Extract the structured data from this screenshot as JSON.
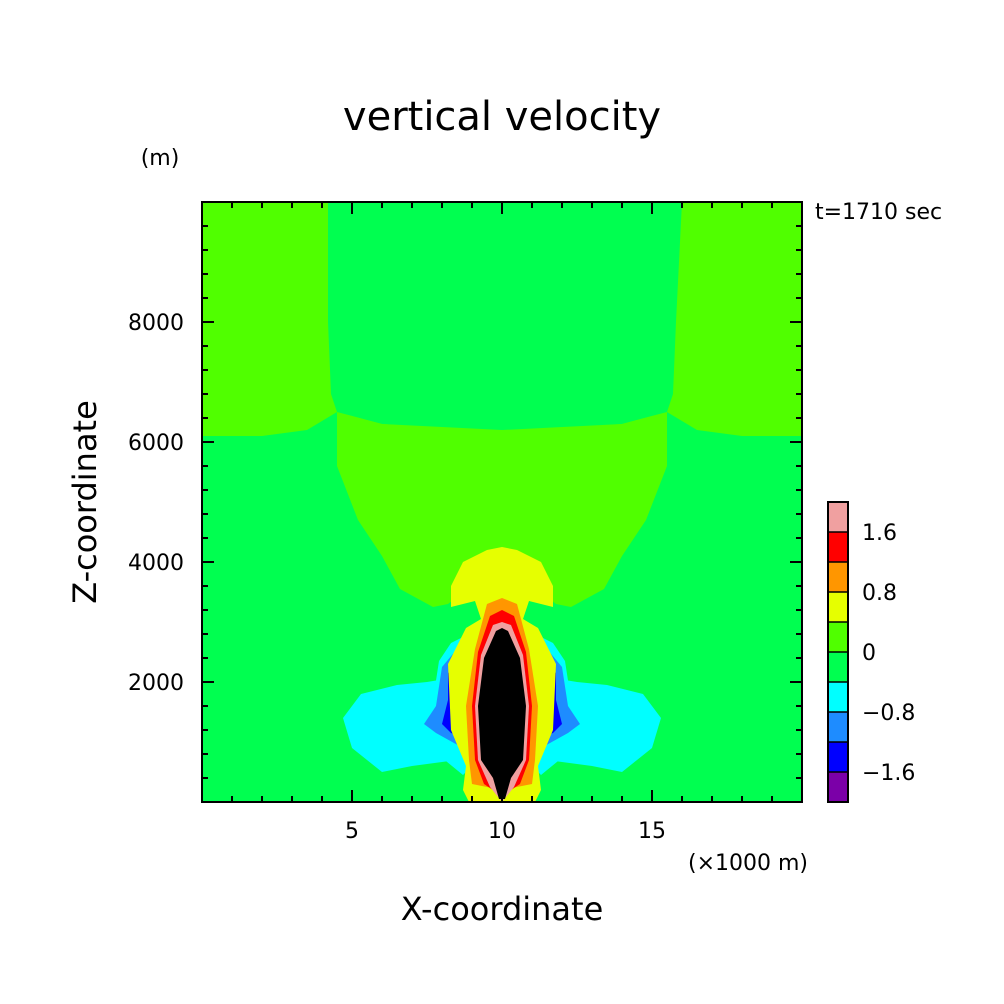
{
  "chart_data": {
    "type": "heatmap",
    "title": "vertical velocity",
    "xlabel": "X-coordinate",
    "ylabel": "Z-coordinate",
    "x_unit": "(×1000 m)",
    "y_unit": "(m)",
    "time_label": "t=1710 sec",
    "xlim": [
      0,
      20
    ],
    "ylim": [
      0,
      10000
    ],
    "x_ticks": [
      5,
      10,
      15
    ],
    "x_tick_labels": [
      "5",
      "10",
      "15"
    ],
    "y_ticks": [
      2000,
      4000,
      6000,
      8000
    ],
    "y_tick_labels": [
      "2000",
      "4000",
      "6000",
      "8000"
    ],
    "colorbar": {
      "levels": [
        -2.0,
        -1.6,
        -1.2,
        -0.8,
        -0.4,
        0,
        0.4,
        0.8,
        1.2,
        1.6,
        2.0
      ],
      "labels": [
        "1.6",
        "0.8",
        "0",
        "−0.8",
        "−1.6"
      ],
      "label_values": [
        1.6,
        0.8,
        0,
        -0.8,
        -1.6
      ],
      "colors_bottom_to_top": [
        "#7b00a8",
        "#0000ff",
        "#1e8cff",
        "#00ffff",
        "#00ff50",
        "#50ff00",
        "#e6ff00",
        "#ff9600",
        "#ff0000",
        "#f0a0a0"
      ]
    },
    "grid": false,
    "regions_level_index": [
      {
        "level": 5,
        "polygon": [
          [
            0,
            6100
          ],
          [
            2,
            6100
          ],
          [
            3.5,
            6200
          ],
          [
            4.5,
            6500
          ],
          [
            7,
            6150
          ],
          [
            10,
            5900
          ],
          [
            13,
            6150
          ],
          [
            15.5,
            6500
          ],
          [
            16.5,
            6200
          ],
          [
            18,
            6100
          ],
          [
            20,
            6100
          ],
          [
            20,
            10000
          ],
          [
            16,
            10000
          ],
          [
            15.8,
            8000
          ],
          [
            15.7,
            6800
          ],
          [
            15.5,
            6500
          ],
          [
            14,
            6300
          ],
          [
            10,
            6200
          ],
          [
            6,
            6300
          ],
          [
            4.5,
            6500
          ],
          [
            4.3,
            6800
          ],
          [
            4.2,
            8000
          ],
          [
            4.2,
            10000
          ],
          [
            0,
            10000
          ]
        ]
      },
      {
        "level": 5,
        "polygon": [
          [
            4.5,
            6500
          ],
          [
            6,
            6300
          ],
          [
            10,
            6150
          ],
          [
            14,
            6300
          ],
          [
            15.5,
            6500
          ],
          [
            15.5,
            5600
          ],
          [
            14.8,
            4700
          ],
          [
            14,
            4100
          ],
          [
            13.4,
            3550
          ],
          [
            12.3,
            3250
          ],
          [
            11.8,
            3300
          ],
          [
            11.3,
            3500
          ],
          [
            10,
            3450
          ],
          [
            8.7,
            3500
          ],
          [
            8.2,
            3300
          ],
          [
            7.7,
            3250
          ],
          [
            6.6,
            3550
          ],
          [
            6,
            4100
          ],
          [
            5.2,
            4700
          ],
          [
            4.5,
            5600
          ]
        ]
      },
      {
        "level": 3,
        "polygon": [
          [
            5.3,
            1800
          ],
          [
            6.5,
            1950
          ],
          [
            7.5,
            2000
          ],
          [
            8.7,
            2100
          ],
          [
            11.3,
            2100
          ],
          [
            12.5,
            2000
          ],
          [
            13.5,
            1950
          ],
          [
            14.7,
            1800
          ],
          [
            15.3,
            1400
          ],
          [
            15,
            900
          ],
          [
            14,
            500
          ],
          [
            13,
            600
          ],
          [
            11.5,
            700
          ],
          [
            10,
            700
          ],
          [
            8.5,
            700
          ],
          [
            7,
            600
          ],
          [
            6,
            500
          ],
          [
            5,
            900
          ],
          [
            4.7,
            1400
          ]
        ]
      },
      {
        "level": 3,
        "polygon": [
          [
            7.9,
            2350
          ],
          [
            8.3,
            2650
          ],
          [
            8.9,
            2800
          ],
          [
            9.1,
            2400
          ],
          [
            9.2,
            1500
          ],
          [
            9,
            600
          ],
          [
            8.7,
            450
          ],
          [
            7.6,
            900
          ],
          [
            7.3,
            1300
          ],
          [
            7.7,
            1700
          ]
        ]
      },
      {
        "level": 3,
        "polygon": [
          [
            12.1,
            2350
          ],
          [
            11.7,
            2650
          ],
          [
            11.1,
            2800
          ],
          [
            10.9,
            2400
          ],
          [
            10.8,
            1500
          ],
          [
            11,
            600
          ],
          [
            11.3,
            450
          ],
          [
            12.4,
            900
          ],
          [
            12.7,
            1300
          ],
          [
            12.3,
            1700
          ]
        ]
      },
      {
        "level": 2,
        "polygon": [
          [
            8.0,
            2250
          ],
          [
            8.5,
            2550
          ],
          [
            8.9,
            2600
          ],
          [
            9.0,
            2000
          ],
          [
            9.0,
            1100
          ],
          [
            8.7,
            900
          ],
          [
            7.8,
            1150
          ],
          [
            7.4,
            1300
          ],
          [
            7.8,
            1600
          ]
        ]
      },
      {
        "level": 2,
        "polygon": [
          [
            12.0,
            2250
          ],
          [
            11.5,
            2550
          ],
          [
            11.1,
            2600
          ],
          [
            11.0,
            2000
          ],
          [
            11.0,
            1100
          ],
          [
            11.3,
            900
          ],
          [
            12.2,
            1150
          ],
          [
            12.6,
            1300
          ],
          [
            12.2,
            1600
          ]
        ]
      },
      {
        "level": 1,
        "polygon": [
          [
            8.2,
            2150
          ],
          [
            8.6,
            2400
          ],
          [
            8.9,
            2450
          ],
          [
            8.9,
            1500
          ],
          [
            8.8,
            1050
          ],
          [
            8.3,
            1150
          ],
          [
            8.0,
            1300
          ],
          [
            8.2,
            1700
          ]
        ]
      },
      {
        "level": 1,
        "polygon": [
          [
            11.8,
            2150
          ],
          [
            11.4,
            2400
          ],
          [
            11.1,
            2450
          ],
          [
            11.1,
            1500
          ],
          [
            11.2,
            1050
          ],
          [
            11.7,
            1150
          ],
          [
            12.0,
            1300
          ],
          [
            11.8,
            1700
          ]
        ]
      },
      {
        "level": 0,
        "polygon": [
          [
            8.4,
            2050
          ],
          [
            8.7,
            2250
          ],
          [
            8.8,
            1500
          ],
          [
            8.6,
            1150
          ],
          [
            8.3,
            1300
          ],
          [
            8.3,
            1700
          ]
        ]
      },
      {
        "level": 0,
        "polygon": [
          [
            11.6,
            2050
          ],
          [
            11.3,
            2250
          ],
          [
            11.2,
            1500
          ],
          [
            11.4,
            1150
          ],
          [
            11.7,
            1300
          ],
          [
            11.7,
            1700
          ]
        ]
      },
      {
        "level": 6,
        "polygon": [
          [
            8.7,
            4000
          ],
          [
            9.5,
            4200
          ],
          [
            10,
            4250
          ],
          [
            10.5,
            4200
          ],
          [
            11.3,
            4000
          ],
          [
            11.7,
            3600
          ],
          [
            11.7,
            3250
          ],
          [
            10.9,
            3350
          ],
          [
            10.7,
            3050
          ],
          [
            11.2,
            2900
          ],
          [
            11.8,
            2300
          ],
          [
            11.7,
            1200
          ],
          [
            11.2,
            600
          ],
          [
            11.3,
            200
          ],
          [
            11.1,
            0
          ],
          [
            8.9,
            0
          ],
          [
            8.7,
            200
          ],
          [
            8.8,
            600
          ],
          [
            8.3,
            1200
          ],
          [
            8.2,
            2300
          ],
          [
            8.8,
            2900
          ],
          [
            9.3,
            3050
          ],
          [
            9.1,
            3350
          ],
          [
            8.3,
            3250
          ],
          [
            8.3,
            3600
          ]
        ]
      },
      {
        "level": 7,
        "polygon": [
          [
            9.1,
            2550
          ],
          [
            9.5,
            3300
          ],
          [
            10,
            3400
          ],
          [
            10.5,
            3300
          ],
          [
            10.9,
            2550
          ],
          [
            11.2,
            1600
          ],
          [
            11.1,
            700
          ],
          [
            11.0,
            300
          ],
          [
            10,
            200
          ],
          [
            9.0,
            300
          ],
          [
            8.9,
            700
          ],
          [
            8.8,
            1600
          ]
        ]
      },
      {
        "level": 8,
        "polygon": [
          [
            9.2,
            2500
          ],
          [
            9.6,
            3100
          ],
          [
            10,
            3200
          ],
          [
            10.4,
            3100
          ],
          [
            10.8,
            2500
          ],
          [
            11.0,
            1600
          ],
          [
            10.9,
            700
          ],
          [
            10.6,
            300
          ],
          [
            10,
            100
          ],
          [
            9.4,
            300
          ],
          [
            9.1,
            700
          ],
          [
            9.0,
            1600
          ]
        ]
      },
      {
        "level": 9,
        "polygon": [
          [
            9.3,
            2450
          ],
          [
            9.7,
            2950
          ],
          [
            10,
            3000
          ],
          [
            10.3,
            2950
          ],
          [
            10.7,
            2450
          ],
          [
            10.9,
            1600
          ],
          [
            10.8,
            700
          ],
          [
            10.4,
            250
          ],
          [
            10,
            0
          ],
          [
            9.6,
            250
          ],
          [
            9.2,
            700
          ],
          [
            9.1,
            1600
          ]
        ]
      },
      {
        "level": 10,
        "polygon": [
          [
            9.4,
            2400
          ],
          [
            9.8,
            2850
          ],
          [
            10,
            2900
          ],
          [
            10.2,
            2850
          ],
          [
            10.6,
            2400
          ],
          [
            10.8,
            1600
          ],
          [
            10.7,
            700
          ],
          [
            10.3,
            400
          ],
          [
            10.1,
            50
          ],
          [
            9.9,
            50
          ],
          [
            9.7,
            400
          ],
          [
            9.3,
            700
          ],
          [
            9.2,
            1600
          ]
        ]
      }
    ]
  }
}
